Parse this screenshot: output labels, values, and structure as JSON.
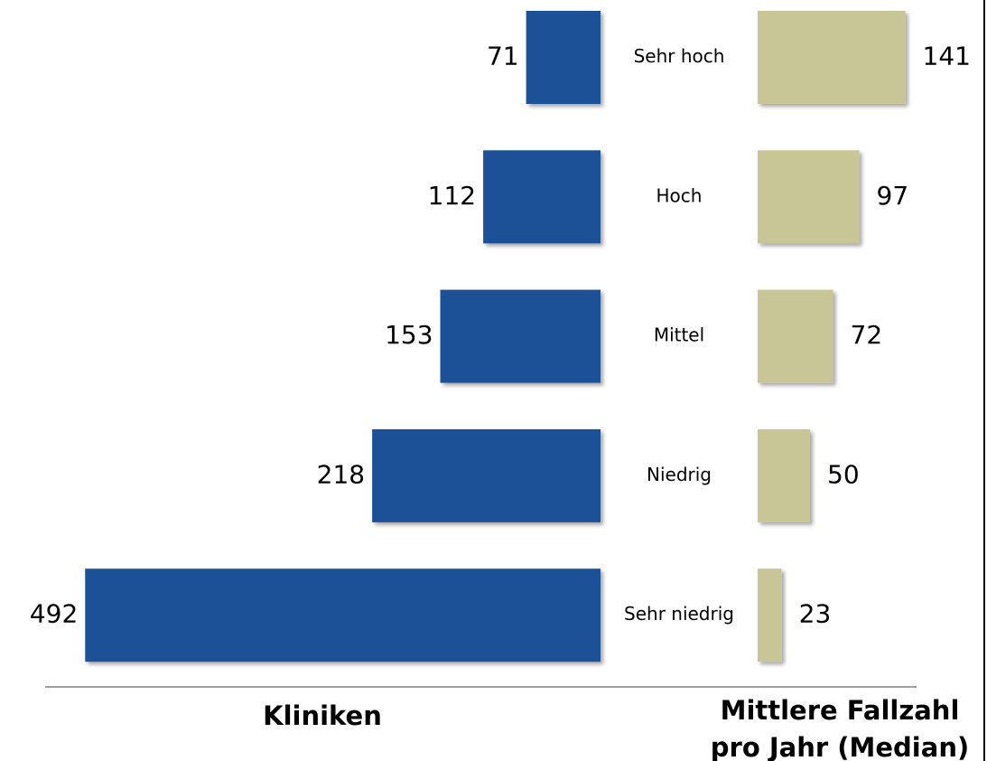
{
  "chart_data": {
    "type": "bar",
    "orientation": "horizontal",
    "categories": [
      "Sehr hoch",
      "Hoch",
      "Mittel",
      "Niedrig",
      "Sehr niedrig"
    ],
    "series": [
      {
        "name": "Kliniken",
        "color": "#1f5197",
        "values": [
          71,
          112,
          153,
          218,
          492
        ]
      },
      {
        "name": "Mittlere Fallzahl pro Jahr (Median)",
        "color": "#c8c697",
        "values": [
          141,
          97,
          72,
          50,
          23
        ]
      }
    ]
  }
}
